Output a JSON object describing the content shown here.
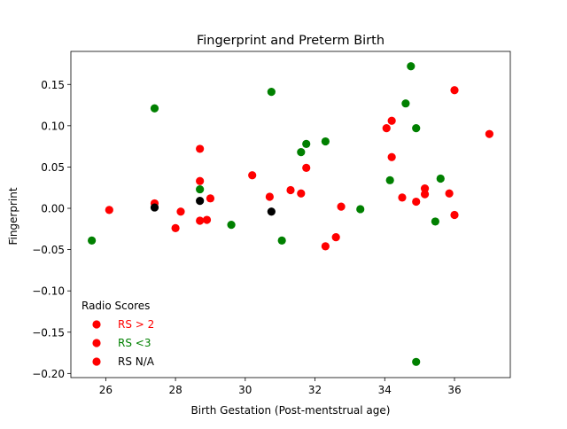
{
  "chart_data": {
    "type": "scatter",
    "title": "Fingerprint and Preterm Birth",
    "xlabel": "Birth Gestation (Post-mentstrual age)",
    "ylabel": "Fingerprint",
    "xlim": [
      25.0,
      37.6
    ],
    "ylim": [
      -0.205,
      0.19
    ],
    "xticks": [
      26,
      28,
      30,
      32,
      34,
      36
    ],
    "xtick_labels": [
      "26",
      "28",
      "30",
      "32",
      "34",
      "36"
    ],
    "yticks": [
      -0.2,
      -0.15,
      -0.1,
      -0.05,
      0.0,
      0.05,
      0.1,
      0.15
    ],
    "ytick_labels": [
      "−0.20",
      "−0.15",
      "−0.10",
      "−0.05",
      "0.00",
      "0.05",
      "0.10",
      "0.15"
    ],
    "grid": false,
    "legend": {
      "title": "Radio Scores",
      "placement": "lower-left",
      "entries": [
        {
          "label": "RS > 2",
          "marker_color": "#ff0000",
          "text_color": "#ff0000"
        },
        {
          "label": "RS <3",
          "marker_color": "#ff0000",
          "text_color": "#008000"
        },
        {
          "label": "RS N/A",
          "marker_color": "#ff0000",
          "text_color": "#000000"
        }
      ]
    },
    "colors": {
      "red": "#ff0000",
      "green": "#008000",
      "black": "#000000"
    },
    "series": [
      {
        "name": "RS > 2",
        "color": "#ff0000",
        "points": [
          {
            "x": 26.1,
            "y": -0.002
          },
          {
            "x": 27.4,
            "y": 0.006
          },
          {
            "x": 28.0,
            "y": -0.024
          },
          {
            "x": 28.15,
            "y": -0.004
          },
          {
            "x": 28.7,
            "y": 0.072
          },
          {
            "x": 28.7,
            "y": 0.033
          },
          {
            "x": 28.7,
            "y": -0.015
          },
          {
            "x": 28.9,
            "y": -0.014
          },
          {
            "x": 29.0,
            "y": 0.012
          },
          {
            "x": 30.2,
            "y": 0.04
          },
          {
            "x": 30.7,
            "y": 0.014
          },
          {
            "x": 31.3,
            "y": 0.022
          },
          {
            "x": 31.6,
            "y": 0.018
          },
          {
            "x": 31.75,
            "y": 0.049
          },
          {
            "x": 32.3,
            "y": -0.046
          },
          {
            "x": 32.6,
            "y": -0.035
          },
          {
            "x": 32.75,
            "y": 0.002
          },
          {
            "x": 34.05,
            "y": 0.097
          },
          {
            "x": 34.2,
            "y": 0.106
          },
          {
            "x": 34.2,
            "y": 0.062
          },
          {
            "x": 34.5,
            "y": 0.013
          },
          {
            "x": 34.9,
            "y": 0.008
          },
          {
            "x": 35.15,
            "y": 0.024
          },
          {
            "x": 35.15,
            "y": 0.017
          },
          {
            "x": 35.85,
            "y": 0.018
          },
          {
            "x": 36.0,
            "y": 0.143
          },
          {
            "x": 36.0,
            "y": -0.008
          },
          {
            "x": 37.0,
            "y": 0.09
          }
        ]
      },
      {
        "name": "RS <3",
        "color": "#008000",
        "points": [
          {
            "x": 25.6,
            "y": -0.039
          },
          {
            "x": 27.4,
            "y": 0.121
          },
          {
            "x": 28.7,
            "y": 0.023
          },
          {
            "x": 29.6,
            "y": -0.02
          },
          {
            "x": 30.75,
            "y": 0.141
          },
          {
            "x": 31.05,
            "y": -0.039
          },
          {
            "x": 31.6,
            "y": 0.068
          },
          {
            "x": 31.75,
            "y": 0.078
          },
          {
            "x": 32.3,
            "y": 0.081
          },
          {
            "x": 33.3,
            "y": -0.001
          },
          {
            "x": 34.15,
            "y": 0.034
          },
          {
            "x": 34.6,
            "y": 0.127
          },
          {
            "x": 34.75,
            "y": 0.172
          },
          {
            "x": 34.9,
            "y": 0.097
          },
          {
            "x": 34.9,
            "y": -0.186
          },
          {
            "x": 35.45,
            "y": -0.016
          },
          {
            "x": 35.6,
            "y": 0.036
          }
        ]
      },
      {
        "name": "RS N/A",
        "color": "#000000",
        "points": [
          {
            "x": 27.4,
            "y": 0.001
          },
          {
            "x": 28.7,
            "y": 0.009
          },
          {
            "x": 30.75,
            "y": -0.004
          }
        ]
      }
    ]
  }
}
